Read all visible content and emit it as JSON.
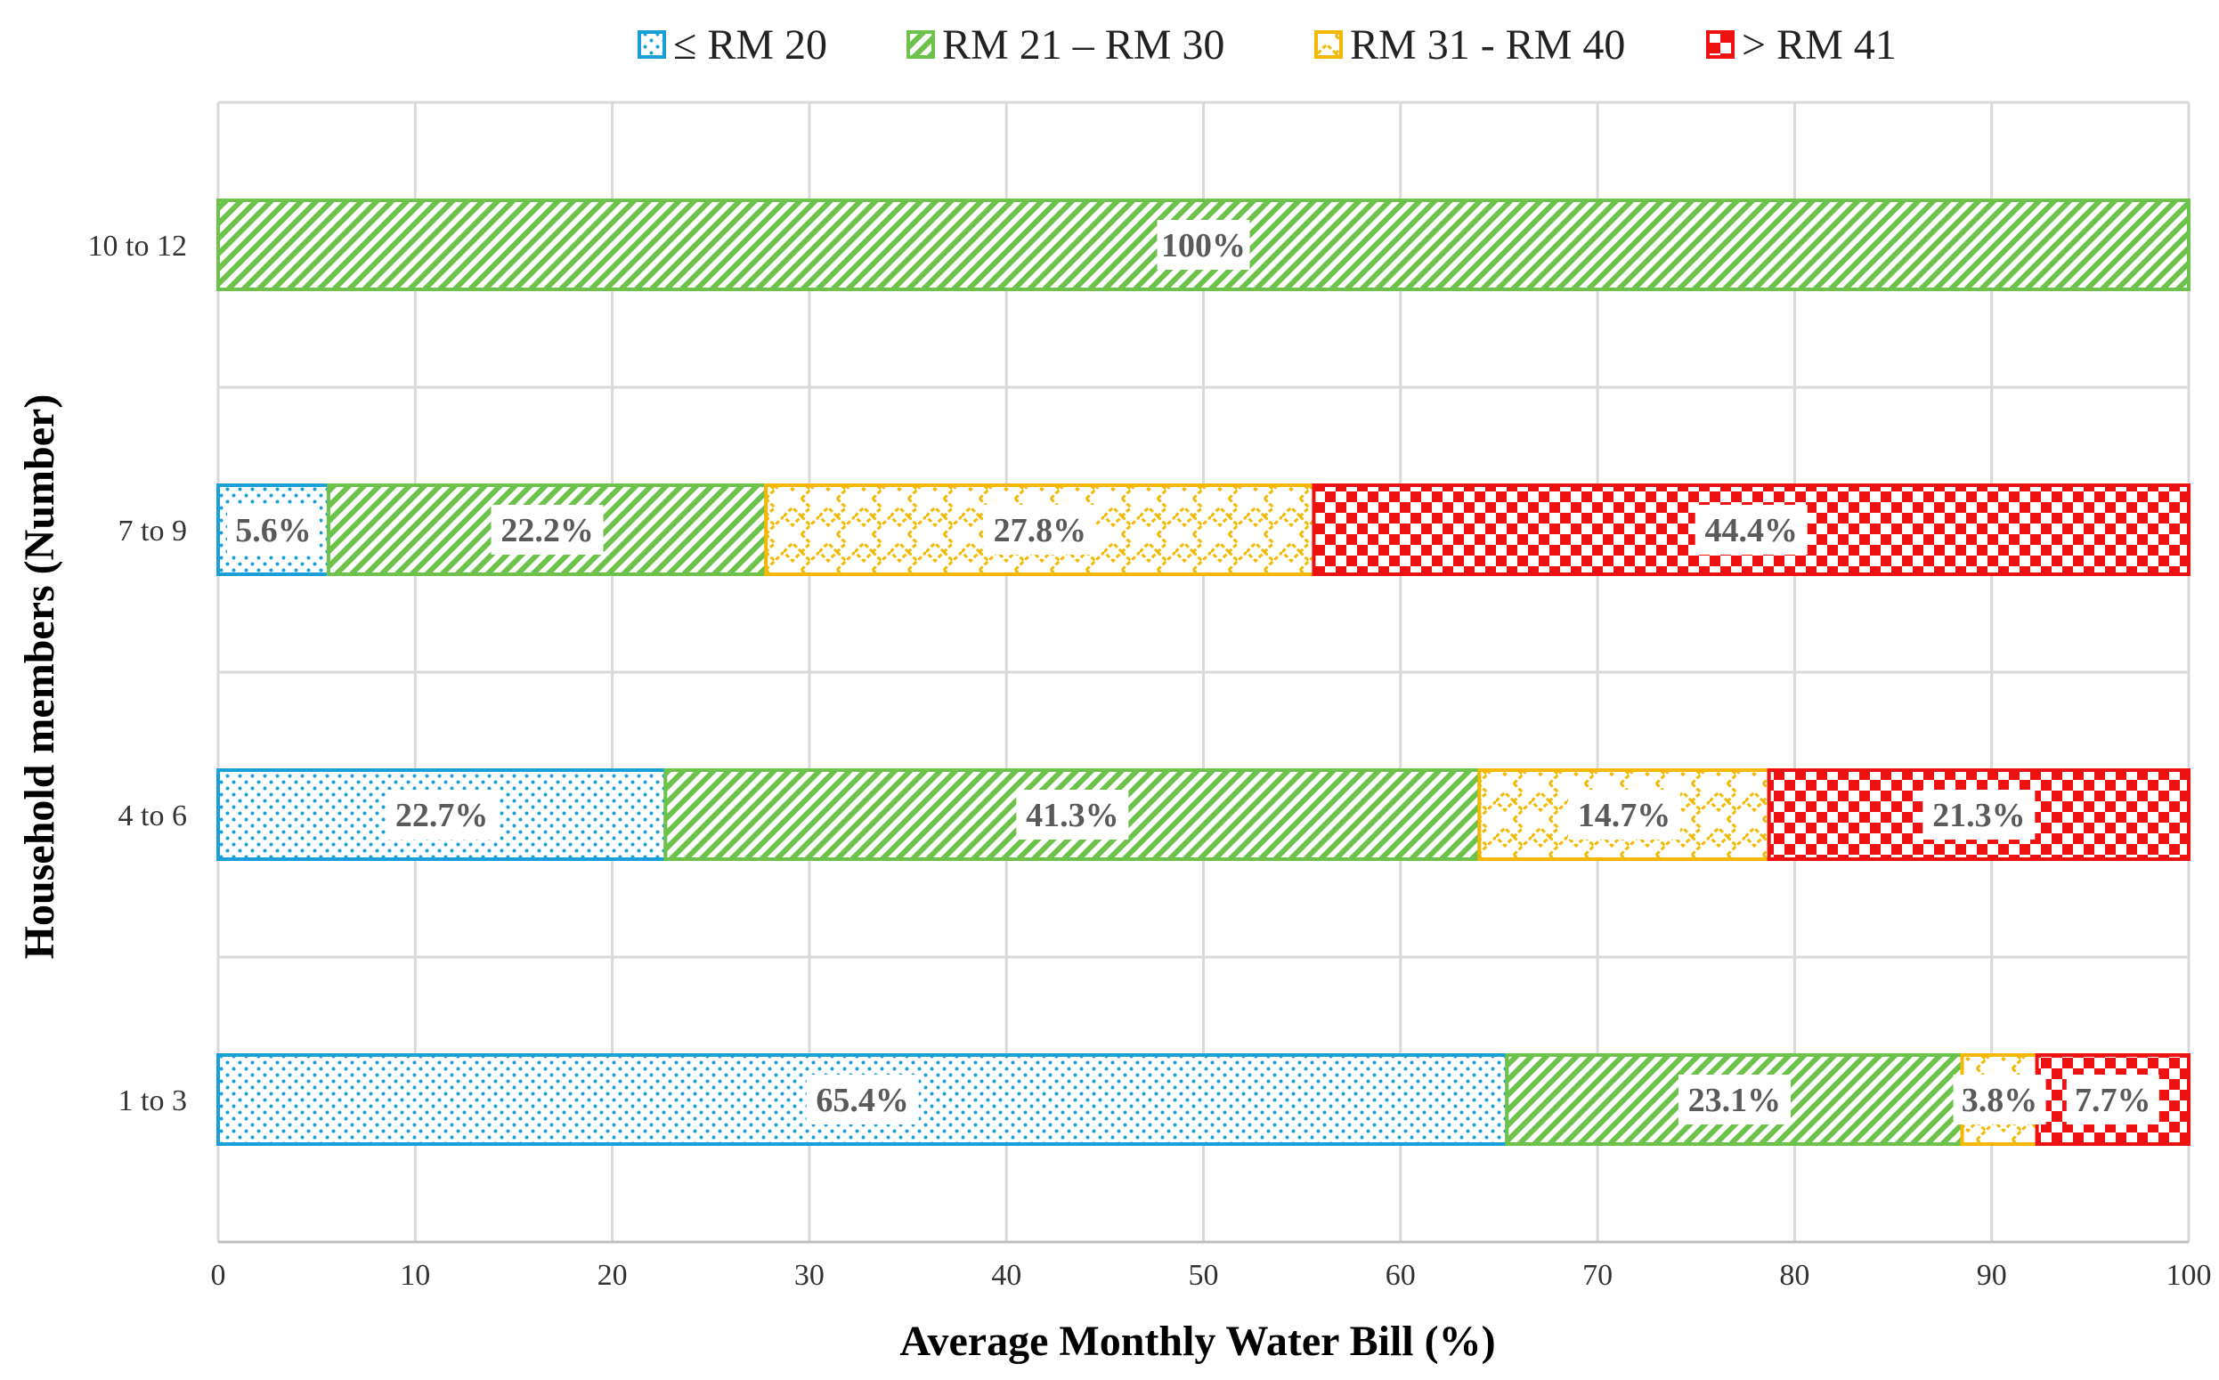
{
  "chart_data": {
    "type": "bar",
    "orientation": "horizontal",
    "stacked": true,
    "xlabel": "Average Monthly Water Bill (%)",
    "ylabel": "Household members (Number)",
    "xlim": [
      0,
      100
    ],
    "xticks": [
      0,
      10,
      20,
      30,
      40,
      50,
      60,
      70,
      80,
      90,
      100
    ],
    "grid": true,
    "legend_position": "top",
    "categories": [
      "10 to 12",
      "7 to 9",
      "4 to 6",
      "1 to 3"
    ],
    "series": [
      {
        "name": "≤ RM 20",
        "color": "#1aa0d8",
        "pattern": "dots",
        "values": [
          0,
          5.6,
          22.7,
          65.4
        ],
        "labels": [
          "",
          "5.6%",
          "22.7%",
          "65.4%"
        ]
      },
      {
        "name": "RM 21 –  RM 30",
        "color": "#6cc24a",
        "pattern": "diagonal-stripes",
        "values": [
          100,
          22.2,
          41.3,
          23.1
        ],
        "labels": [
          "100%",
          "22.2%",
          "41.3%",
          "23.1%"
        ]
      },
      {
        "name": "RM 31 - RM 40",
        "color": "#f5b800",
        "pattern": "brick",
        "values": [
          0,
          27.8,
          14.7,
          3.8
        ],
        "labels": [
          "",
          "27.8%",
          "14.7%",
          "3.8%"
        ]
      },
      {
        "name": "> RM 41",
        "color": "#ee1111",
        "pattern": "checker",
        "values": [
          0,
          44.4,
          21.3,
          7.7
        ],
        "labels": [
          "",
          "44.4%",
          "21.3%",
          "7.7%"
        ]
      }
    ]
  }
}
